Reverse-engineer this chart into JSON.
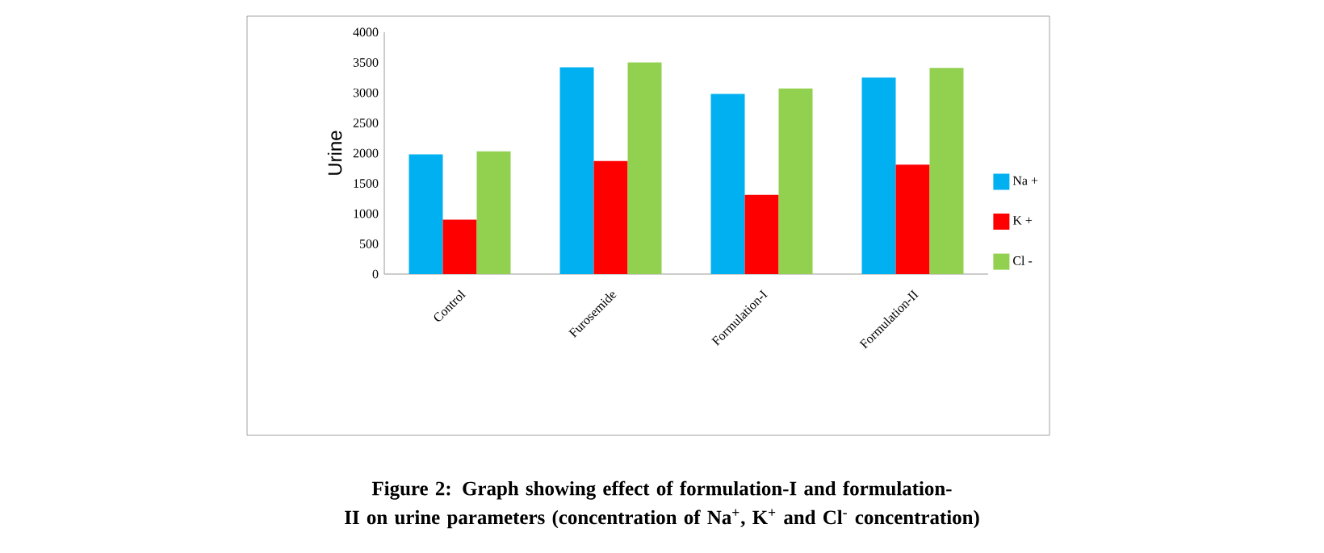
{
  "chart_data": {
    "type": "bar",
    "ylabel": "Urine",
    "categories": [
      "Control",
      "Furosemide",
      "Formulation-I",
      "Formulation-II"
    ],
    "series": [
      {
        "name": "Na +",
        "color": "#00b0f0",
        "values": [
          1980,
          3420,
          2980,
          3250
        ]
      },
      {
        "name": "K +",
        "color": "#ff0000",
        "values": [
          900,
          1870,
          1310,
          1810
        ]
      },
      {
        "name": "Cl -",
        "color": "#92d050",
        "values": [
          2030,
          3500,
          3070,
          3410
        ]
      }
    ],
    "ylim": [
      0,
      4000
    ],
    "yticks": [
      0,
      500,
      1000,
      1500,
      2000,
      2500,
      3000,
      3500,
      4000
    ],
    "grid": false,
    "legend": "right",
    "annotations": [
      "Figure 2: Graph showing effect of formulation-I and formulation-II on urine parameters (concentration of Na$^{+}$, K$^{+}$ and Cl$^{-}$ concentration)"
    ]
  }
}
